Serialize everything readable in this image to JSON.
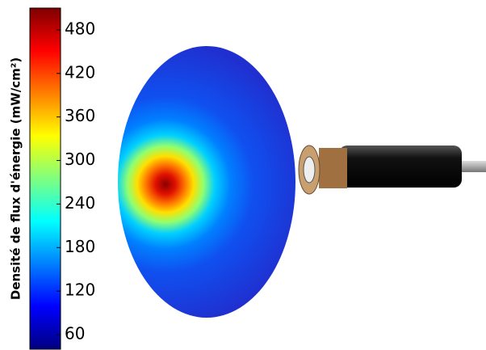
{
  "chart_data": {
    "type": "colorbar",
    "label": "Densité de flux d'énergie (mW/cm²)",
    "ylim": [
      40,
      510
    ],
    "yticks": [
      60,
      120,
      180,
      240,
      300,
      360,
      420,
      480
    ],
    "colormap": "jet"
  }
}
